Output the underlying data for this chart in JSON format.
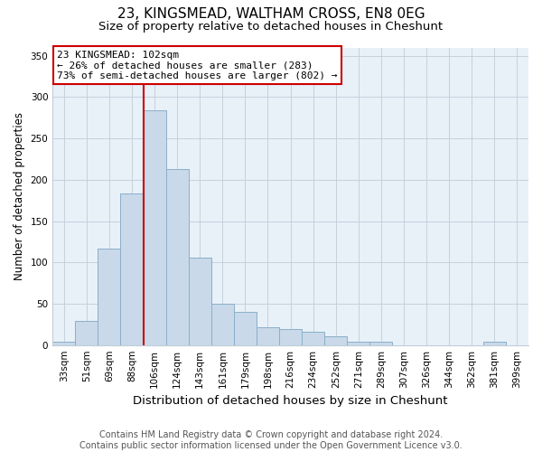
{
  "title1": "23, KINGSMEAD, WALTHAM CROSS, EN8 0EG",
  "title2": "Size of property relative to detached houses in Cheshunt",
  "xlabel": "Distribution of detached houses by size in Cheshunt",
  "ylabel": "Number of detached properties",
  "categories": [
    "33sqm",
    "51sqm",
    "69sqm",
    "88sqm",
    "106sqm",
    "124sqm",
    "143sqm",
    "161sqm",
    "179sqm",
    "198sqm",
    "216sqm",
    "234sqm",
    "252sqm",
    "271sqm",
    "289sqm",
    "307sqm",
    "326sqm",
    "344sqm",
    "362sqm",
    "381sqm",
    "399sqm"
  ],
  "values": [
    4,
    29,
    117,
    183,
    284,
    213,
    106,
    50,
    40,
    22,
    19,
    16,
    11,
    4,
    4,
    0,
    0,
    0,
    0,
    4,
    0
  ],
  "bar_color": "#c9d9ea",
  "bar_edge_color": "#8aafc8",
  "redline_index": 4,
  "annotation_text": "23 KINGSMEAD: 102sqm\n← 26% of detached houses are smaller (283)\n73% of semi-detached houses are larger (802) →",
  "annotation_box_color": "white",
  "annotation_box_edge": "#cc0000",
  "redline_color": "#cc0000",
  "ylim": [
    0,
    360
  ],
  "yticks": [
    0,
    50,
    100,
    150,
    200,
    250,
    300,
    350
  ],
  "grid_color": "#c0cdd8",
  "background_color": "#e8f0f8",
  "footnote": "Contains HM Land Registry data © Crown copyright and database right 2024.\nContains public sector information licensed under the Open Government Licence v3.0.",
  "title1_fontsize": 11,
  "title2_fontsize": 9.5,
  "xlabel_fontsize": 9.5,
  "ylabel_fontsize": 8.5,
  "tick_fontsize": 7.5,
  "annotation_fontsize": 8,
  "footnote_fontsize": 7
}
